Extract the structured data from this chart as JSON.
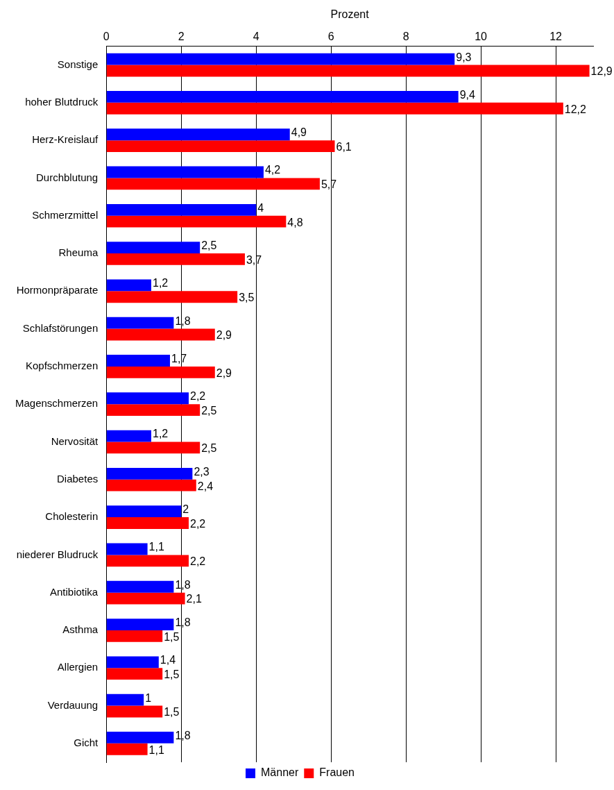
{
  "chart_data": {
    "type": "bar",
    "orientation": "horizontal",
    "xlabel": "Prozent",
    "categories": [
      "Sonstige",
      "hoher Blutdruck",
      "Herz-Kreislauf",
      "Durchblutung",
      "Schmerzmittel",
      "Rheuma",
      "Hormonpräparate",
      "Schlafstörungen",
      "Kopfschmerzen",
      "Magenschmerzen",
      "Nervosität",
      "Diabetes",
      "Cholesterin",
      "niederer Bludruck",
      "Antibiotika",
      "Asthma",
      "Allergien",
      "Verdauung",
      "Gicht"
    ],
    "series": [
      {
        "name": "Männer",
        "color": "#0000ff",
        "values": [
          9.3,
          9.4,
          4.9,
          4.2,
          4,
          2.5,
          1.2,
          1.8,
          1.7,
          2.2,
          1.2,
          2.3,
          2,
          1.1,
          1.8,
          1.8,
          1.4,
          1,
          1.8
        ],
        "value_labels": [
          "9,3",
          "9,4",
          "4,9",
          "4,2",
          "4",
          "2,5",
          "1,2",
          "1,8",
          "1,7",
          "2,2",
          "1,2",
          "2,3",
          "2",
          "1,1",
          "1,8",
          "1,8",
          "1,4",
          "1",
          "1,8"
        ]
      },
      {
        "name": "Frauen",
        "color": "#ff0000",
        "values": [
          12.9,
          12.2,
          6.1,
          5.7,
          4.8,
          3.7,
          3.5,
          2.9,
          2.9,
          2.5,
          2.5,
          2.4,
          2.2,
          2.2,
          2.1,
          1.5,
          1.5,
          1.5,
          1.1
        ],
        "value_labels": [
          "12,9",
          "12,2",
          "6,1",
          "5,7",
          "4,8",
          "3,7",
          "3,5",
          "2,9",
          "2,9",
          "2,5",
          "2,5",
          "2,4",
          "2,2",
          "2,2",
          "2,1",
          "1,5",
          "1,5",
          "1,5",
          "1,1"
        ]
      }
    ],
    "xlim": [
      0,
      13
    ],
    "xticks": [
      0,
      2,
      4,
      6,
      8,
      10,
      12
    ],
    "grid": "x",
    "legend": "bottom"
  }
}
